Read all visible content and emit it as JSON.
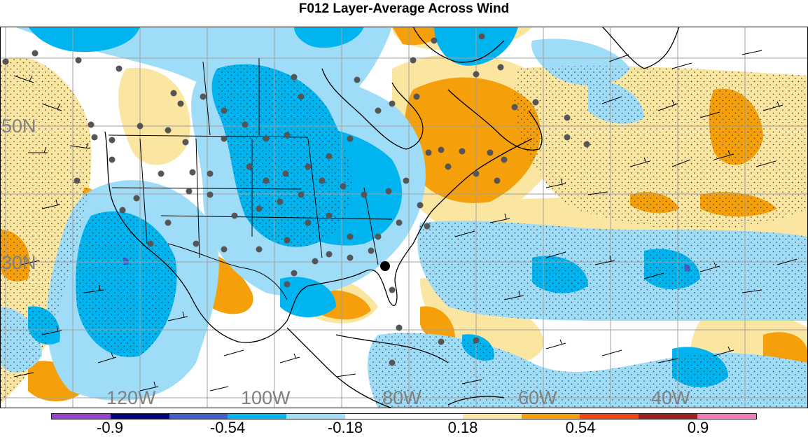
{
  "title": "F012 Layer-Average Across Wind",
  "lon_labels": [
    "120W",
    "100W",
    "80W",
    "60W",
    "40W"
  ],
  "lat_labels": [
    "50N",
    "30N"
  ],
  "colorbar": {
    "colors": [
      "#9b3fcf",
      "#000080",
      "#3f5fcf",
      "#00b4f0",
      "#9fdcf8",
      "#ffffff",
      "#ffffff",
      "#fae6a0",
      "#f5a00a",
      "#f04614",
      "#a01e1e",
      "#f07ab4"
    ],
    "labels": [
      "-0.9",
      "-0.54",
      "-0.18",
      "0.18",
      "0.54",
      "0.9"
    ]
  },
  "legend": {
    "stipple": "dots",
    "observation_marker": "filled-circle",
    "wind_symbols": "wind-barbs"
  }
}
